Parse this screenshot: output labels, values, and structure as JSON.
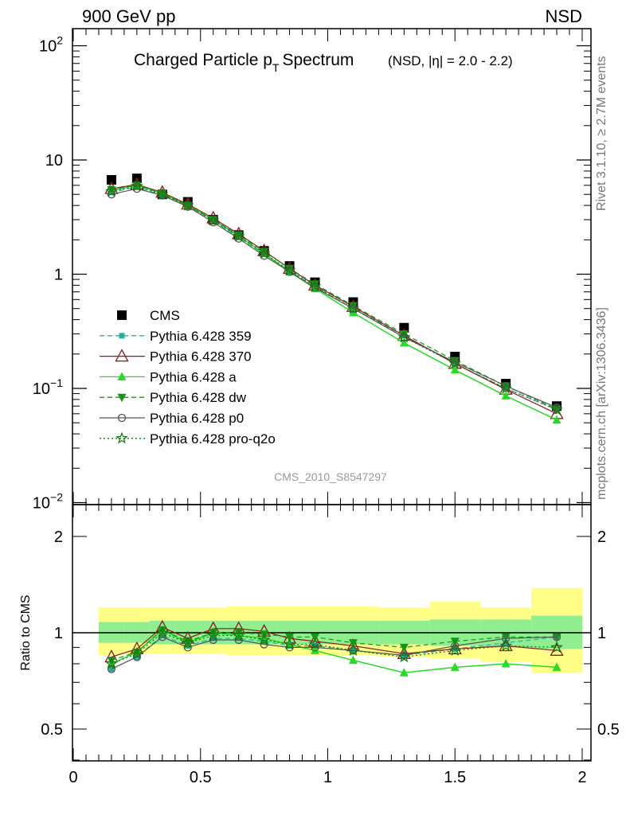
{
  "header": {
    "left": "900 GeV pp",
    "right": "NSD"
  },
  "side_text": {
    "top": "Rivet 3.1.10, ≥ 2.7M events",
    "bottom": "mcplots.cern.ch [arXiv:1306.3436]"
  },
  "analysis_tag": "CMS_2010_S8547297",
  "colors": {
    "cms": "#000000",
    "p359": "#20b2aa",
    "p370": "#8b1a1a",
    "pa": "#22dd22",
    "pdw": "#119911",
    "pp0": "#555555",
    "pq2o": "#117711"
  },
  "chart_data": [
    {
      "type": "scatter",
      "title": "Charged Particle p",
      "title_sub": "T",
      "title_rest": "Spectrum",
      "subtitle": "(NSD, |η| = 2.0 - 2.2)",
      "xlabel": "",
      "ylabel": "",
      "xlim": [
        0,
        2
      ],
      "ylim": [
        0.01,
        150
      ],
      "log_y": true,
      "x_ticks": [
        "0",
        "0.5",
        "1",
        "1.5",
        "2"
      ],
      "y_tick_labels": [
        {
          "base": "10",
          "exp": "−2"
        },
        {
          "base": "10",
          "exp": "−1"
        },
        {
          "base": "1",
          "exp": ""
        },
        {
          "base": "10",
          "exp": ""
        },
        {
          "base": "10",
          "exp": "2"
        }
      ],
      "x": [
        0.15,
        0.25,
        0.35,
        0.45,
        0.55,
        0.65,
        0.75,
        0.85,
        0.95,
        1.1,
        1.3,
        1.5,
        1.7,
        1.9
      ],
      "legend_position": "middle-left",
      "series": [
        {
          "name": "CMS",
          "key": "cms",
          "values": [
            6.7,
            6.9,
            5.0,
            4.3,
            3.0,
            2.2,
            1.6,
            1.18,
            0.85,
            0.57,
            0.34,
            0.19,
            0.11,
            0.07
          ]
        },
        {
          "name": "Pythia 6.428 359",
          "key": "p359",
          "values": [
            5.2,
            5.8,
            4.9,
            3.9,
            2.9,
            2.1,
            1.5,
            1.07,
            0.78,
            0.5,
            0.29,
            0.165,
            0.1,
            0.065
          ]
        },
        {
          "name": "Pythia 6.428 370",
          "key": "p370",
          "values": [
            5.6,
            6.1,
            5.2,
            4.1,
            3.1,
            2.25,
            1.6,
            1.12,
            0.8,
            0.52,
            0.29,
            0.165,
            0.098,
            0.06
          ]
        },
        {
          "name": "Pythia 6.428 a",
          "key": "pa",
          "values": [
            5.4,
            6.0,
            5.1,
            4.0,
            3.0,
            2.15,
            1.52,
            1.05,
            0.75,
            0.46,
            0.25,
            0.145,
            0.086,
            0.053
          ]
        },
        {
          "name": "Pythia 6.428 dw",
          "key": "pdw",
          "values": [
            5.5,
            6.0,
            5.1,
            4.0,
            3.0,
            2.2,
            1.58,
            1.12,
            0.82,
            0.53,
            0.3,
            0.175,
            0.105,
            0.066
          ]
        },
        {
          "name": "Pythia 6.428 p0",
          "key": "pp0",
          "values": [
            5.0,
            5.6,
            4.9,
            3.9,
            2.85,
            2.05,
            1.45,
            1.05,
            0.76,
            0.5,
            0.28,
            0.17,
            0.105,
            0.068
          ]
        },
        {
          "name": "Pythia 6.428 pro-q2o",
          "key": "pq2o",
          "values": [
            5.3,
            5.9,
            5.0,
            4.0,
            2.95,
            2.15,
            1.52,
            1.08,
            0.78,
            0.5,
            0.28,
            0.165,
            0.1,
            0.065
          ]
        }
      ]
    },
    {
      "type": "scatter",
      "title": "",
      "xlabel": "",
      "ylabel": "Ratio to CMS",
      "xlim": [
        0,
        2
      ],
      "ylim": [
        0.35,
        2.3
      ],
      "log_y": true,
      "y_ticks": [
        "0.5",
        "1",
        "2"
      ],
      "bands": {
        "edges": [
          0.1,
          0.2,
          0.3,
          0.4,
          0.5,
          0.6,
          0.7,
          0.8,
          0.9,
          1.0,
          1.2,
          1.4,
          1.6,
          1.8,
          2.0
        ],
        "inner": [
          [
            0.93,
            1.08
          ],
          [
            0.93,
            1.08
          ],
          [
            0.92,
            1.09
          ],
          [
            0.92,
            1.09
          ],
          [
            0.92,
            1.09
          ],
          [
            0.92,
            1.09
          ],
          [
            0.92,
            1.09
          ],
          [
            0.92,
            1.09
          ],
          [
            0.92,
            1.09
          ],
          [
            0.92,
            1.09
          ],
          [
            0.92,
            1.09
          ],
          [
            0.91,
            1.1
          ],
          [
            0.9,
            1.1
          ],
          [
            0.89,
            1.13
          ]
        ],
        "outer": [
          [
            0.85,
            1.2
          ],
          [
            0.86,
            1.2
          ],
          [
            0.86,
            1.2
          ],
          [
            0.86,
            1.2
          ],
          [
            0.86,
            1.2
          ],
          [
            0.85,
            1.21
          ],
          [
            0.85,
            1.21
          ],
          [
            0.85,
            1.21
          ],
          [
            0.85,
            1.21
          ],
          [
            0.85,
            1.21
          ],
          [
            0.84,
            1.2
          ],
          [
            0.83,
            1.25
          ],
          [
            0.81,
            1.2
          ],
          [
            0.75,
            1.38
          ]
        ]
      },
      "x": [
        0.15,
        0.25,
        0.35,
        0.45,
        0.55,
        0.65,
        0.75,
        0.85,
        0.95,
        1.1,
        1.3,
        1.5,
        1.7,
        1.9
      ],
      "series": [
        {
          "name": "Pythia 6.428 359",
          "key": "p359",
          "values": [
            0.77,
            0.84,
            0.98,
            0.91,
            0.96,
            0.96,
            0.94,
            0.91,
            0.91,
            0.88,
            0.85,
            0.89,
            0.93,
            0.97
          ]
        },
        {
          "name": "Pythia 6.428 370",
          "key": "p370",
          "values": [
            0.84,
            0.89,
            1.04,
            0.96,
            1.03,
            1.03,
            1.01,
            0.96,
            0.94,
            0.91,
            0.86,
            0.89,
            0.91,
            0.88
          ]
        },
        {
          "name": "Pythia 6.428 a",
          "key": "pa",
          "values": [
            0.8,
            0.87,
            1.02,
            0.93,
            1.0,
            0.98,
            0.96,
            0.92,
            0.88,
            0.82,
            0.75,
            0.78,
            0.8,
            0.78
          ]
        },
        {
          "name": "Pythia 6.428 dw",
          "key": "pdw",
          "values": [
            0.82,
            0.87,
            1.02,
            0.94,
            1.0,
            1.0,
            0.99,
            0.97,
            0.97,
            0.93,
            0.9,
            0.94,
            0.97,
            0.97
          ]
        },
        {
          "name": "Pythia 6.428 p0",
          "key": "pp0",
          "values": [
            0.77,
            0.84,
            0.97,
            0.9,
            0.95,
            0.95,
            0.92,
            0.9,
            0.9,
            0.88,
            0.85,
            0.91,
            0.96,
            0.97
          ]
        },
        {
          "name": "Pythia 6.428 pro-q2o",
          "key": "pq2o",
          "values": [
            0.8,
            0.86,
            1.0,
            0.93,
            0.98,
            0.98,
            0.95,
            0.92,
            0.92,
            0.88,
            0.84,
            0.88,
            0.91,
            0.9
          ]
        }
      ]
    }
  ]
}
